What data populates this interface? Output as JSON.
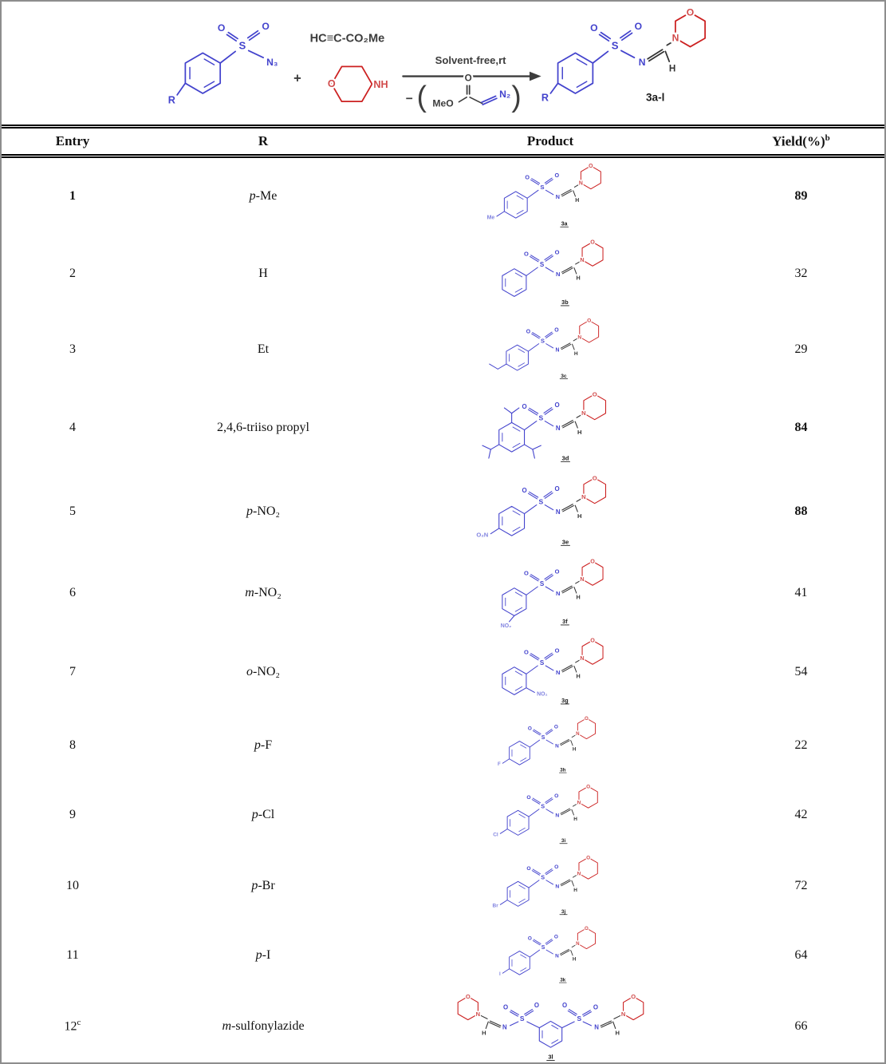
{
  "scheme": {
    "labels": {
      "r": "R",
      "azide": "N₃",
      "plus": "+",
      "alkyne": "HC≡C-CO₂Me",
      "nh": "NH",
      "arrow_text": "Solvent-free,rt",
      "minus": "−",
      "paren_open": "(",
      "paren_close": ")",
      "meo": "MeO",
      "n2": "N₂",
      "product_range": "3a-l"
    },
    "colors": {
      "blue": "#4343cd",
      "light_blue": "#8183e0",
      "red": "#cc2020",
      "red_atom": "#d14b4b",
      "dark": "#3d3d3d",
      "black": "#1a1a1a"
    }
  },
  "chemistry": {
    "atoms": {
      "s": "S",
      "o": "O",
      "n": "N",
      "h": "H"
    }
  },
  "table": {
    "headers": {
      "entry": "Entry",
      "r": "R",
      "product": "Product",
      "yield": "Yield(%)",
      "yield_sup": "b"
    },
    "rows": [
      {
        "entry": "1",
        "entry_sup": "",
        "entry_bold": true,
        "r_prefix": "p",
        "r_rest": "-Me",
        "label": "3a",
        "sub": "Me",
        "variant": "para-text",
        "yield": "89",
        "yield_bold": true
      },
      {
        "entry": "2",
        "entry_sup": "",
        "entry_bold": false,
        "r_prefix": "",
        "r_rest": "H",
        "label": "3b",
        "sub": "",
        "variant": "none",
        "yield": "32",
        "yield_bold": false
      },
      {
        "entry": "3",
        "entry_sup": "",
        "entry_bold": false,
        "r_prefix": "",
        "r_rest": "Et",
        "label": "3c",
        "sub": "",
        "variant": "ethyl",
        "yield": "29",
        "yield_bold": false
      },
      {
        "entry": "4",
        "entry_sup": "",
        "entry_bold": false,
        "r_prefix": "",
        "r_rest": "2,4,6-triiso propyl",
        "label": "3d",
        "sub": "",
        "variant": "triiso",
        "yield": "84",
        "yield_bold": true
      },
      {
        "entry": "5",
        "entry_sup": "",
        "entry_bold": false,
        "r_prefix": "p",
        "r_rest": "-NO₂",
        "label": "3e",
        "sub": "O₂N",
        "variant": "para-text",
        "yield": "88",
        "yield_bold": true
      },
      {
        "entry": "6",
        "entry_sup": "",
        "entry_bold": false,
        "r_prefix": "m",
        "r_rest": "-NO₂",
        "label": "3f",
        "sub": "NO₂",
        "variant": "meta-text",
        "yield": "41",
        "yield_bold": false
      },
      {
        "entry": "7",
        "entry_sup": "",
        "entry_bold": false,
        "r_prefix": "o",
        "r_rest": "-NO₂",
        "label": "3g",
        "sub": "NO₂",
        "variant": "ortho-text",
        "yield": "54",
        "yield_bold": false
      },
      {
        "entry": "8",
        "entry_sup": "",
        "entry_bold": false,
        "r_prefix": "p",
        "r_rest": "-F",
        "label": "3h",
        "sub": "F",
        "variant": "para-text",
        "yield": "22",
        "yield_bold": false
      },
      {
        "entry": "9",
        "entry_sup": "",
        "entry_bold": false,
        "r_prefix": "p",
        "r_rest": "-Cl",
        "label": "3i",
        "sub": "Cl",
        "variant": "para-text",
        "yield": "42",
        "yield_bold": false
      },
      {
        "entry": "10",
        "entry_sup": "",
        "entry_bold": false,
        "r_prefix": "p",
        "r_rest": "-Br",
        "label": "3j",
        "sub": "Br",
        "variant": "para-text",
        "yield": "72",
        "yield_bold": false
      },
      {
        "entry": "11",
        "entry_sup": "",
        "entry_bold": false,
        "r_prefix": "p",
        "r_rest": "-I",
        "label": "3k",
        "sub": "I",
        "variant": "para-text",
        "yield": "64",
        "yield_bold": false
      },
      {
        "entry": "12",
        "entry_sup": "c",
        "entry_bold": false,
        "r_prefix": "m",
        "r_rest": "-sulfonylazide",
        "label": "3l",
        "sub": "",
        "variant": "bis",
        "yield": "66",
        "yield_bold": false
      }
    ]
  }
}
